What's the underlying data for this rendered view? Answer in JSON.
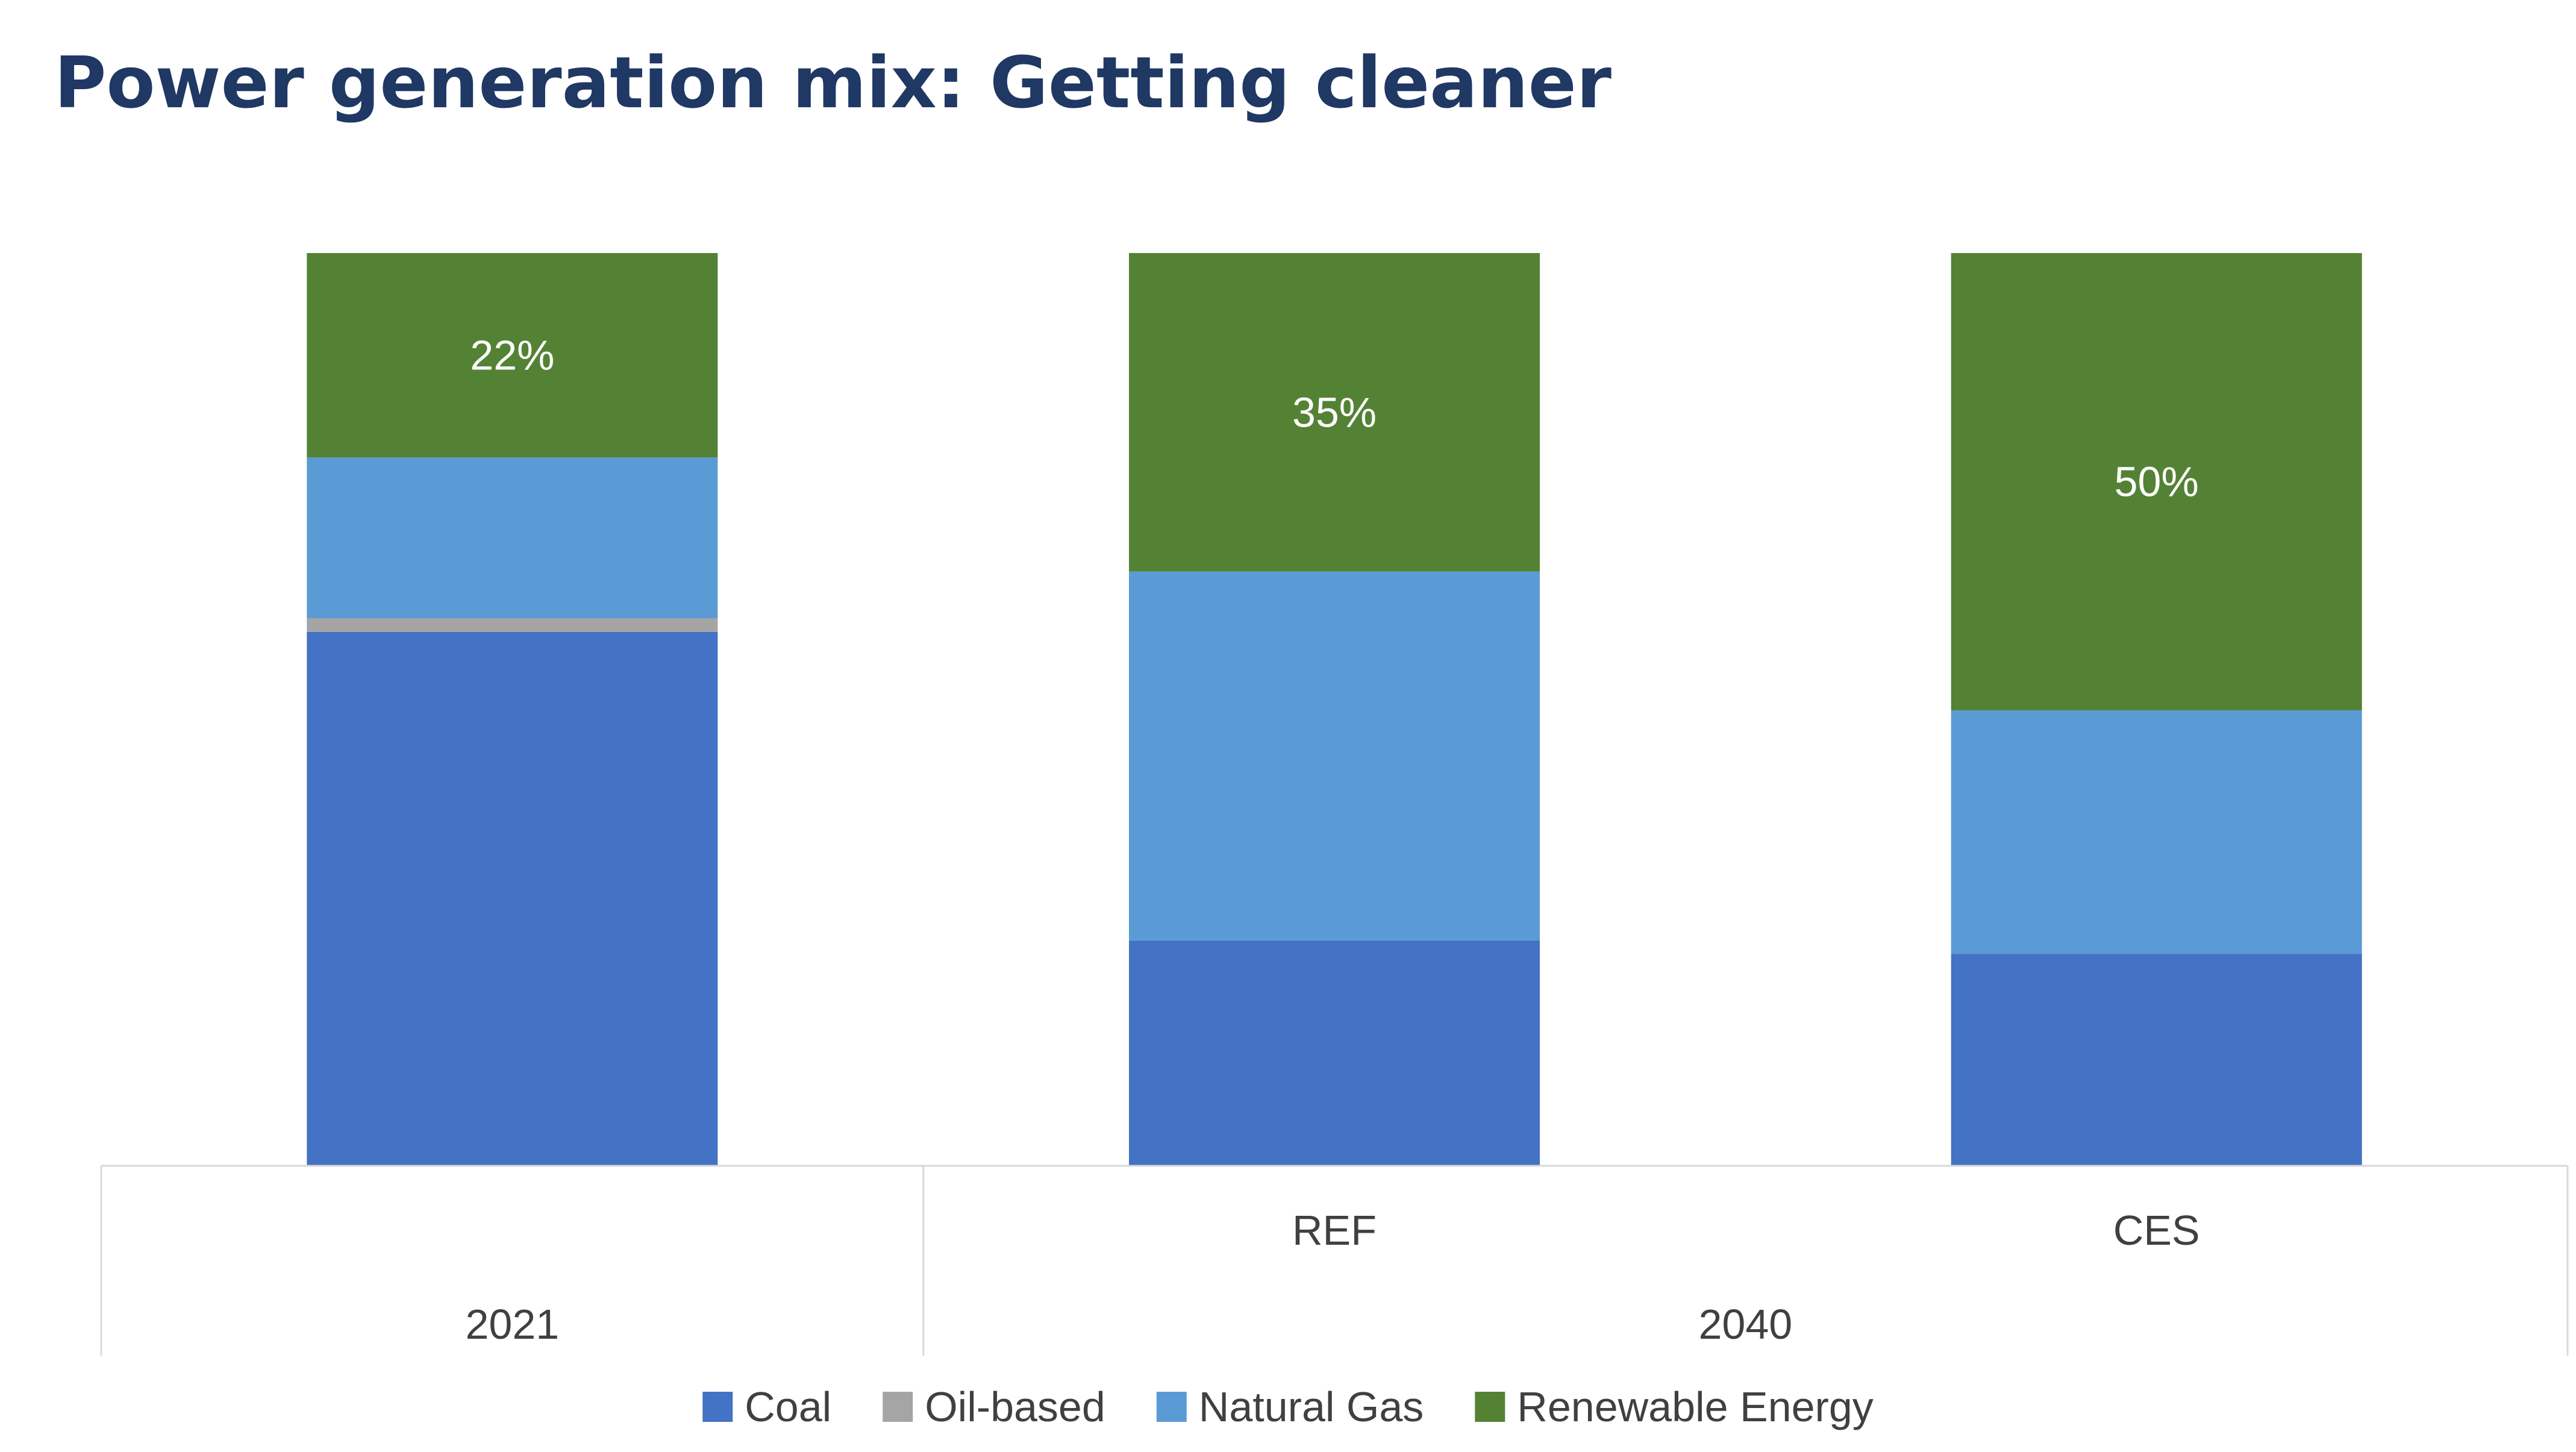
{
  "chart_data": {
    "type": "bar",
    "stacked": true,
    "title": "Power generation mix: Getting cleaner",
    "xlabel": "",
    "ylabel": "",
    "ylim": [
      0,
      100
    ],
    "grid": false,
    "legend_position": "bottom",
    "categories": [
      "2021",
      "REF",
      "CES"
    ],
    "groups": [
      {
        "label": "2021",
        "categories": [
          "2021"
        ],
        "show_category_labels": false
      },
      {
        "label": "2040",
        "categories": [
          "REF",
          "CES"
        ],
        "show_category_labels": true
      }
    ],
    "series": [
      {
        "name": "Coal",
        "color": "#4472C4",
        "values": [
          58.5,
          24.7,
          23.2
        ]
      },
      {
        "name": "Oil-based",
        "color": "#A5A5A5",
        "values": [
          1.5,
          0,
          0
        ]
      },
      {
        "name": "Natural Gas",
        "color": "#5B9BD5",
        "values": [
          17.6,
          40.4,
          26.7
        ]
      },
      {
        "name": "Renewable Energy",
        "color": "#548235",
        "values": [
          22.4,
          34.9,
          50.1
        ]
      }
    ],
    "data_labels": [
      {
        "series": "Renewable Energy",
        "category": "2021",
        "text": "22%"
      },
      {
        "series": "Renewable Energy",
        "category": "REF",
        "text": "35%"
      },
      {
        "series": "Renewable Energy",
        "category": "CES",
        "text": "50%"
      }
    ]
  }
}
